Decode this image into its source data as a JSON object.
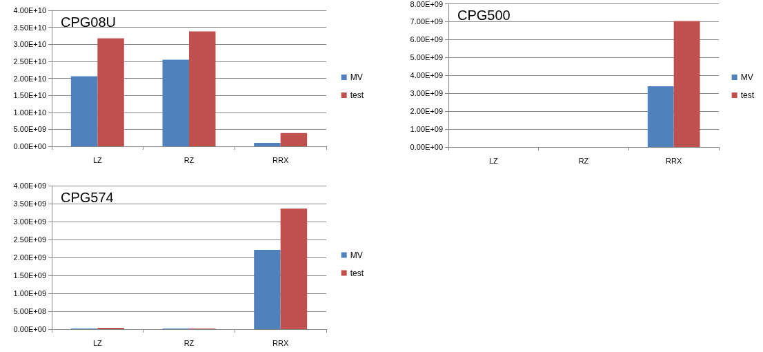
{
  "chart_data": [
    {
      "type": "bar",
      "title": "CPG08U",
      "categories": [
        "LZ",
        "RZ",
        "RRX"
      ],
      "series": [
        {
          "name": "MV",
          "color": "#4f81bd",
          "values": [
            20600000000.0,
            25500000000.0,
            1000000000.0
          ]
        },
        {
          "name": "test",
          "color": "#c0504d",
          "values": [
            31800000000.0,
            33800000000.0,
            3900000000.0
          ]
        }
      ],
      "ylim": [
        0,
        40000000000.0
      ],
      "yticks": [
        {
          "value": 0,
          "label": "0.00E+00"
        },
        {
          "value": 5000000000.0,
          "label": "5.00E+09"
        },
        {
          "value": 10000000000.0,
          "label": "1.00E+10"
        },
        {
          "value": 15000000000.0,
          "label": "1.50E+10"
        },
        {
          "value": 20000000000.0,
          "label": "2.00E+10"
        },
        {
          "value": 25000000000.0,
          "label": "2.50E+10"
        },
        {
          "value": 30000000000.0,
          "label": "3.00E+10"
        },
        {
          "value": 35000000000.0,
          "label": "3.50E+10"
        },
        {
          "value": 40000000000.0,
          "label": "4.00E+10"
        }
      ],
      "grid": "y",
      "legend": "right"
    },
    {
      "type": "bar",
      "title": "CPG500",
      "categories": [
        "LZ",
        "RZ",
        "RRX"
      ],
      "series": [
        {
          "name": "MV",
          "color": "#4f81bd",
          "values": [
            0,
            0,
            3390000000.0
          ]
        },
        {
          "name": "test",
          "color": "#c0504d",
          "values": [
            0,
            0,
            7040000000.0
          ]
        }
      ],
      "ylim": [
        0,
        8000000000.0
      ],
      "yticks": [
        {
          "value": 0,
          "label": "0.00E+00"
        },
        {
          "value": 1000000000.0,
          "label": "1.00E+09"
        },
        {
          "value": 2000000000.0,
          "label": "2.00E+09"
        },
        {
          "value": 3000000000.0,
          "label": "3.00E+09"
        },
        {
          "value": 4000000000.0,
          "label": "4.00E+09"
        },
        {
          "value": 5000000000.0,
          "label": "5.00E+09"
        },
        {
          "value": 6000000000.0,
          "label": "6.00E+09"
        },
        {
          "value": 7000000000.0,
          "label": "7.00E+09"
        },
        {
          "value": 8000000000.0,
          "label": "8.00E+09"
        }
      ],
      "grid": "y",
      "legend": "right"
    },
    {
      "type": "bar",
      "title": "CPG574",
      "categories": [
        "LZ",
        "RZ",
        "RRX"
      ],
      "series": [
        {
          "name": "MV",
          "color": "#4f81bd",
          "values": [
            20000000.0,
            20000000.0,
            2210000000.0
          ]
        },
        {
          "name": "test",
          "color": "#c0504d",
          "values": [
            40000000.0,
            20000000.0,
            3360000000.0
          ]
        }
      ],
      "ylim": [
        0,
        4000000000.0
      ],
      "yticks": [
        {
          "value": 0,
          "label": "0.00E+00"
        },
        {
          "value": 500000000.0,
          "label": "5.00E+08"
        },
        {
          "value": 1000000000.0,
          "label": "1.00E+09"
        },
        {
          "value": 1500000000.0,
          "label": "1.50E+09"
        },
        {
          "value": 2000000000.0,
          "label": "2.00E+09"
        },
        {
          "value": 2500000000.0,
          "label": "2.50E+09"
        },
        {
          "value": 3000000000.0,
          "label": "3.00E+09"
        },
        {
          "value": 3500000000.0,
          "label": "3.50E+09"
        },
        {
          "value": 4000000000.0,
          "label": "4.00E+09"
        }
      ],
      "grid": "y",
      "legend": "right"
    }
  ]
}
